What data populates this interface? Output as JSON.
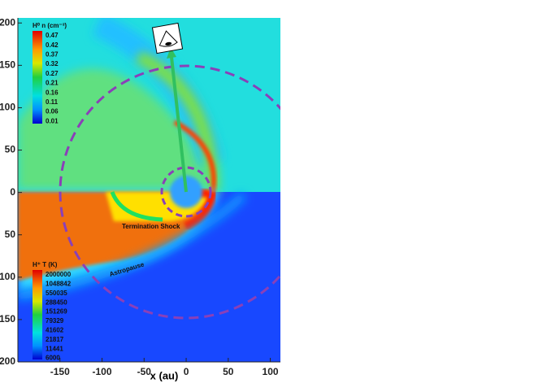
{
  "chart_data": {
    "type": "field",
    "xlabel": "x (au)",
    "xlim": [
      -200,
      112
    ],
    "xticks": [
      -150,
      -100,
      -50,
      0,
      50,
      100
    ],
    "ylim": [
      -200,
      206
    ],
    "yticks": [
      {
        "value": 200,
        "label": "200"
      },
      {
        "value": 150,
        "label": "150"
      },
      {
        "value": 100,
        "label": "100"
      },
      {
        "value": 50,
        "label": "50"
      },
      {
        "value": 0,
        "label": "0"
      },
      {
        "value": -50,
        "label": "50"
      },
      {
        "value": -100,
        "label": "100"
      },
      {
        "value": -150,
        "label": "150"
      },
      {
        "value": -200,
        "label": "200"
      }
    ],
    "colorbars": [
      {
        "title": "H⁰ n (cm⁻³)",
        "ticks": [
          0.47,
          0.42,
          0.37,
          0.32,
          0.27,
          0.21,
          0.16,
          0.11,
          0.06,
          0.01
        ]
      },
      {
        "title": "H⁺ T (K)",
        "ticks": [
          2000000,
          1048842,
          550035,
          288450,
          151269,
          79329,
          41602,
          21817,
          11441,
          6000
        ]
      }
    ],
    "annotations": [
      "Termination Shock",
      "Astropause"
    ]
  }
}
